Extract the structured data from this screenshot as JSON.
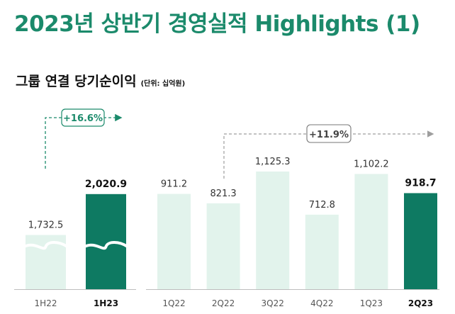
{
  "header": {
    "title": "2023년 상반기 경영실적 Highlights (1)",
    "subtitle": "그룹 연결 당기순이익",
    "unit": "(단위: 십억원)"
  },
  "colors": {
    "light": "#e2f3ec",
    "dark": "#0e7a62",
    "accent": "#1b8a6b",
    "arrow_gray": "#9e9e9e"
  },
  "chart_data": [
    {
      "type": "bar",
      "categories": [
        "1H22",
        "1H23"
      ],
      "values": [
        1732.5,
        2020.9
      ],
      "value_labels": [
        "1,732.5",
        "2,020.9"
      ],
      "highlight_index": 1,
      "axis_break": true,
      "growth_label": "+16.6%"
    },
    {
      "type": "bar",
      "categories": [
        "1Q22",
        "2Q22",
        "3Q22",
        "4Q22",
        "1Q23",
        "2Q23"
      ],
      "values": [
        911.2,
        821.3,
        1125.3,
        712.8,
        1102.2,
        918.7
      ],
      "value_labels": [
        "911.2",
        "821.3",
        "1,125.3",
        "712.8",
        "1,102.2",
        "918.7"
      ],
      "highlight_index": 5,
      "growth_label": "+11.9%"
    }
  ]
}
